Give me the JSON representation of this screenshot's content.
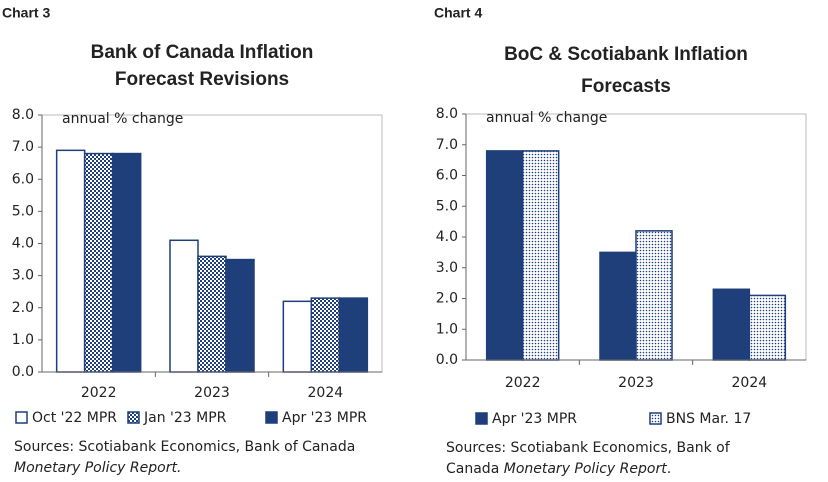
{
  "chart_data": [
    {
      "type": "bar",
      "label": "Chart 3",
      "title": [
        "Bank of Canada Inflation",
        "Forecast Revisions"
      ],
      "y_label": "annual % change",
      "categories": [
        "2022",
        "2023",
        "2024"
      ],
      "series": [
        {
          "name": "Oct '22 MPR",
          "color": "#1f3f7a",
          "fill": "none",
          "values": [
            6.9,
            4.1,
            2.2
          ]
        },
        {
          "name": "Jan '23 MPR",
          "color": "#1f3f7a",
          "fill": "check",
          "values": [
            6.8,
            3.6,
            2.3
          ]
        },
        {
          "name": "Apr '23 MPR",
          "color": "#1f3f7a",
          "fill": "solid",
          "values": [
            6.8,
            3.5,
            2.3
          ]
        }
      ],
      "ylim": [
        0,
        8
      ],
      "yticks": [
        {
          "value": 0,
          "label": "0.0"
        },
        {
          "value": 1,
          "label": "1.0"
        },
        {
          "value": 2,
          "label": "2.0"
        },
        {
          "value": 3,
          "label": "3.0"
        },
        {
          "value": 4,
          "label": "4.0"
        },
        {
          "value": 5,
          "label": "5.0"
        },
        {
          "value": 6,
          "label": "6.0"
        },
        {
          "value": 7,
          "label": "7.0"
        },
        {
          "value": 8,
          "label": "8.0"
        }
      ],
      "sources": [
        [
          {
            "text": "Sources: Scotiabank Economics, Bank of Canada"
          }
        ],
        [
          {
            "text": "Monetary Policy Report.",
            "italic": true
          }
        ]
      ]
    },
    {
      "type": "bar",
      "label": "Chart 4",
      "title": [
        "BoC & Scotiabank Inflation",
        "Forecasts"
      ],
      "y_label": "annual % change",
      "categories": [
        "2022",
        "2023",
        "2024"
      ],
      "series": [
        {
          "name": "Apr '23 MPR",
          "color": "#1f3f7a",
          "fill": "solid",
          "values": [
            6.8,
            3.5,
            2.3
          ]
        },
        {
          "name": "BNS Mar. 17",
          "color": "#1f3f7a",
          "fill": "dots",
          "values": [
            6.8,
            4.2,
            2.1
          ]
        }
      ],
      "ylim": [
        0,
        8
      ],
      "yticks": [
        {
          "value": 0,
          "label": "0.0"
        },
        {
          "value": 1,
          "label": "1.0"
        },
        {
          "value": 2,
          "label": "2.0"
        },
        {
          "value": 3,
          "label": "3.0"
        },
        {
          "value": 4,
          "label": "4.0"
        },
        {
          "value": 5,
          "label": "5.0"
        },
        {
          "value": 6,
          "label": "6.0"
        },
        {
          "value": 7,
          "label": "7.0"
        },
        {
          "value": 8,
          "label": "8.0"
        }
      ],
      "sources": [
        [
          {
            "text": "Sources: Scotiabank Economics, Bank of"
          }
        ],
        [
          {
            "text": "Canada "
          },
          {
            "text": "Monetary Policy Report",
            "italic": true
          },
          {
            "text": "."
          }
        ]
      ]
    }
  ]
}
